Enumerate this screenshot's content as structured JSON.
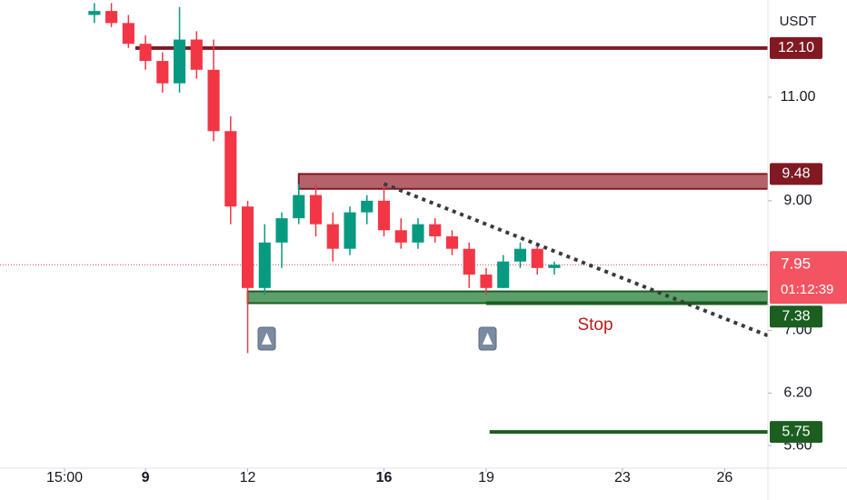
{
  "chart_data": {
    "type": "candlestick",
    "currency": "USDT",
    "x": [
      7.5,
      8,
      8.5,
      9,
      9.5,
      10,
      10.5,
      11,
      11.5,
      12,
      12.5,
      13,
      13.5,
      14,
      14.5,
      15,
      15.5,
      16,
      16.5,
      17,
      17.5,
      18,
      18.5,
      19,
      19.5,
      20,
      20.5,
      21
    ],
    "candles": {
      "open": [
        12.9,
        13.0,
        12.7,
        12.2,
        11.8,
        11.3,
        12.3,
        11.6,
        10.3,
        8.9,
        7.6,
        8.3,
        8.7,
        9.1,
        8.6,
        8.2,
        8.8,
        9.0,
        8.5,
        8.3,
        8.6,
        8.4,
        8.2,
        7.8,
        7.6,
        8.0,
        8.2,
        7.9
      ],
      "high": [
        13.2,
        13.2,
        12.9,
        12.4,
        12.0,
        13.1,
        12.5,
        12.3,
        10.6,
        9.0,
        8.6,
        8.8,
        9.3,
        9.3,
        8.8,
        8.9,
        9.1,
        9.3,
        8.7,
        8.7,
        8.7,
        8.5,
        8.3,
        7.9,
        8.1,
        8.3,
        8.3,
        8.0
      ],
      "low": [
        12.7,
        12.6,
        12.1,
        11.6,
        11.1,
        11.1,
        11.4,
        10.1,
        8.6,
        6.7,
        7.5,
        7.9,
        8.6,
        8.4,
        8.0,
        8.1,
        8.6,
        8.4,
        8.2,
        8.2,
        8.3,
        8.1,
        7.6,
        7.5,
        7.6,
        7.9,
        7.8,
        7.8
      ],
      "close": [
        13.0,
        12.7,
        12.2,
        11.8,
        11.3,
        12.3,
        11.6,
        10.3,
        8.9,
        7.6,
        8.3,
        8.7,
        9.1,
        8.6,
        8.2,
        8.8,
        9.0,
        8.5,
        8.3,
        8.6,
        8.4,
        8.2,
        7.8,
        7.6,
        8.0,
        8.2,
        7.9,
        7.95
      ]
    },
    "up_color": "#089981",
    "down_color": "#f23645",
    "log_scale": true,
    "ylim": [
      5.36,
      13.28
    ],
    "yticks": [
      {
        "value": 11,
        "label": "11.00"
      },
      {
        "value": 9,
        "label": "9.00"
      },
      {
        "value": 7,
        "label": "7.00"
      },
      {
        "value": 6.2,
        "label": "6.20"
      },
      {
        "value": 5.6,
        "label": "5.60"
      }
    ],
    "xlim": [
      4.73,
      27.27
    ],
    "xticks": [
      {
        "value": 6.625,
        "label": "15:00"
      },
      {
        "value": 9,
        "label": "9",
        "bold": true
      },
      12,
      {
        "value": 16,
        "label": "16",
        "bold": true
      },
      19,
      23,
      26
    ],
    "levels": [
      {
        "value": 12.1,
        "label": "12.10",
        "x_start": 8.7,
        "color": "#801922"
      },
      {
        "value": 7.38,
        "label": "7.38",
        "x_start": 19.0,
        "color": "#1b5e20"
      },
      {
        "value": 5.75,
        "label": "5.75",
        "x_start": 19.1,
        "color": "#1b5e20"
      }
    ],
    "zones": [
      {
        "top": 9.48,
        "bottom": 9.21,
        "x_start": 13.5,
        "color": "#801922",
        "fill": "#b4636b",
        "label": "9.48"
      },
      {
        "top": 7.55,
        "bottom": 7.38,
        "x_start": 12,
        "color": "#1b5e20",
        "fill": "#5c9f6b"
      }
    ],
    "trendline": {
      "x": [
        16,
        27.27
      ],
      "y": [
        9.3,
        6.93
      ],
      "color": "#3a3a3a"
    },
    "current_price": {
      "value": 7.95,
      "label": "7.95",
      "countdown": "01:12:39",
      "color": "#f23645"
    },
    "annotation": "Stop"
  }
}
